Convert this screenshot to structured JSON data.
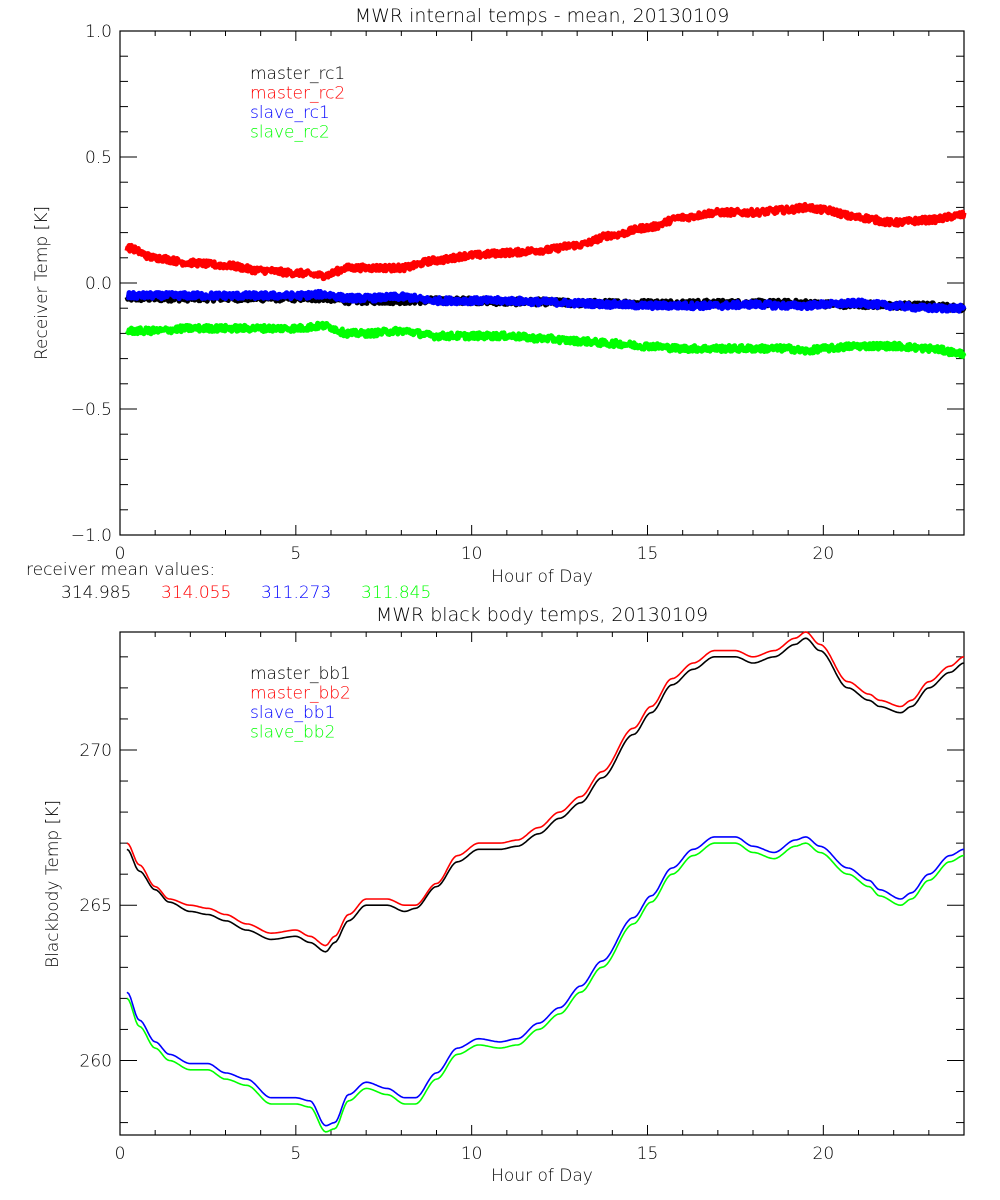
{
  "chart_data": [
    {
      "type": "line",
      "title": "MWR internal temps - mean, 20130109",
      "xlabel": "Hour of Day",
      "ylabel": "Receiver Temp [K]",
      "xlim": [
        0,
        24
      ],
      "ylim": [
        -1.0,
        1.0
      ],
      "x_major_ticks": [
        0,
        5,
        10,
        15,
        20
      ],
      "x_tick_labels": [
        "0",
        "5",
        "10",
        "15",
        "20"
      ],
      "y_major_ticks": [
        -1.0,
        -0.5,
        0.0,
        0.5,
        1.0
      ],
      "y_tick_labels": [
        "-1.0",
        "-0.5",
        "0.0",
        "0.5",
        "1.0"
      ],
      "grid": false,
      "legend_position": "top-left-inside",
      "x": [
        0.2,
        1,
        2,
        3,
        4,
        5,
        5.8,
        6.5,
        7,
        8,
        9,
        10,
        11,
        12,
        13,
        14,
        15,
        16,
        17,
        18,
        19,
        19.5,
        20,
        21,
        22,
        23,
        24
      ],
      "series": [
        {
          "name": "master_rc1",
          "color": "#000000",
          "noisy": true,
          "values": [
            -0.06,
            -0.06,
            -0.06,
            -0.06,
            -0.06,
            -0.06,
            -0.06,
            -0.07,
            -0.07,
            -0.07,
            -0.07,
            -0.07,
            -0.075,
            -0.075,
            -0.08,
            -0.08,
            -0.08,
            -0.08,
            -0.08,
            -0.08,
            -0.08,
            -0.08,
            -0.085,
            -0.085,
            -0.09,
            -0.09,
            -0.1
          ]
        },
        {
          "name": "master_rc2",
          "color": "#ff0000",
          "noisy": true,
          "values": [
            0.14,
            0.1,
            0.08,
            0.07,
            0.05,
            0.04,
            0.03,
            0.06,
            0.06,
            0.06,
            0.09,
            0.11,
            0.12,
            0.13,
            0.15,
            0.19,
            0.22,
            0.26,
            0.28,
            0.28,
            0.29,
            0.3,
            0.29,
            0.26,
            0.24,
            0.25,
            0.27
          ]
        },
        {
          "name": "slave_rc1",
          "color": "#0000ff",
          "noisy": true,
          "values": [
            -0.05,
            -0.05,
            -0.05,
            -0.05,
            -0.05,
            -0.05,
            -0.045,
            -0.06,
            -0.06,
            -0.055,
            -0.07,
            -0.07,
            -0.07,
            -0.075,
            -0.08,
            -0.085,
            -0.09,
            -0.09,
            -0.09,
            -0.085,
            -0.09,
            -0.09,
            -0.085,
            -0.08,
            -0.09,
            -0.1,
            -0.1
          ]
        },
        {
          "name": "slave_rc2",
          "color": "#00ff00",
          "noisy": true,
          "values": [
            -0.19,
            -0.19,
            -0.18,
            -0.18,
            -0.18,
            -0.18,
            -0.17,
            -0.2,
            -0.2,
            -0.19,
            -0.21,
            -0.21,
            -0.21,
            -0.22,
            -0.23,
            -0.24,
            -0.25,
            -0.26,
            -0.26,
            -0.26,
            -0.26,
            -0.27,
            -0.26,
            -0.25,
            -0.25,
            -0.26,
            -0.28
          ]
        }
      ],
      "annotations": {
        "label": "receiver mean values:",
        "values": [
          {
            "text": "314.985",
            "color": "#000000"
          },
          {
            "text": "314.055",
            "color": "#ff0000"
          },
          {
            "text": "311.273",
            "color": "#0000ff"
          },
          {
            "text": "311.845",
            "color": "#00ff00"
          }
        ]
      }
    },
    {
      "type": "line",
      "title": "MWR black body temps, 20130109",
      "xlabel": "Hour of Day",
      "ylabel": "Blackbody Temp [K]",
      "xlim": [
        0,
        24
      ],
      "ylim": [
        257.6,
        273.8
      ],
      "x_major_ticks": [
        0,
        5,
        10,
        15,
        20
      ],
      "x_tick_labels": [
        "0",
        "5",
        "10",
        "15",
        "20"
      ],
      "y_major_ticks": [
        260,
        265,
        270
      ],
      "y_tick_labels": [
        "260",
        "265",
        "270"
      ],
      "grid": false,
      "legend_position": "top-left-inside",
      "x": [
        0.2,
        0.55,
        1.0,
        1.4,
        2.0,
        2.5,
        3.0,
        3.6,
        4.3,
        5.0,
        5.4,
        5.85,
        6.1,
        6.5,
        7.0,
        7.6,
        8.1,
        8.4,
        9.0,
        9.6,
        10.2,
        10.8,
        11.3,
        11.9,
        12.5,
        13.1,
        13.7,
        14.6,
        15.1,
        15.7,
        16.3,
        16.9,
        17.5,
        18.0,
        18.6,
        19.2,
        19.5,
        19.9,
        20.7,
        21.3,
        21.6,
        22.2,
        22.5,
        23.0,
        23.6,
        24.0
      ],
      "series": [
        {
          "name": "master_bb1",
          "color": "#000000",
          "values": [
            266.8,
            266.1,
            265.5,
            265.1,
            264.8,
            264.7,
            264.5,
            264.2,
            263.9,
            264.0,
            263.8,
            263.5,
            263.8,
            264.5,
            265.0,
            265.0,
            264.8,
            264.9,
            265.6,
            266.4,
            266.8,
            266.8,
            266.9,
            267.3,
            267.8,
            268.3,
            269.1,
            270.5,
            271.2,
            272.1,
            272.6,
            273.0,
            273.0,
            272.8,
            273.0,
            273.4,
            273.6,
            273.2,
            272.0,
            271.6,
            271.4,
            271.2,
            271.4,
            272.0,
            272.5,
            272.8
          ]
        },
        {
          "name": "master_bb2",
          "color": "#ff0000",
          "values": [
            267.0,
            266.3,
            265.6,
            265.2,
            265.0,
            264.9,
            264.7,
            264.4,
            264.1,
            264.2,
            264.0,
            263.7,
            264.0,
            264.7,
            265.2,
            265.2,
            265.0,
            265.0,
            265.7,
            266.6,
            267.0,
            267.0,
            267.1,
            267.5,
            268.0,
            268.5,
            269.3,
            270.7,
            271.4,
            272.3,
            272.8,
            273.2,
            273.2,
            273.0,
            273.2,
            273.6,
            273.8,
            273.4,
            272.2,
            271.8,
            271.6,
            271.4,
            271.6,
            272.2,
            272.7,
            273.0
          ]
        },
        {
          "name": "slave_bb1",
          "color": "#0000ff",
          "values": [
            262.2,
            261.3,
            260.6,
            260.2,
            259.9,
            259.9,
            259.6,
            259.4,
            258.8,
            258.8,
            258.7,
            257.9,
            258.0,
            258.9,
            259.3,
            259.1,
            258.8,
            258.8,
            259.6,
            260.4,
            260.7,
            260.6,
            260.7,
            261.2,
            261.7,
            262.4,
            263.2,
            264.6,
            265.3,
            266.2,
            266.8,
            267.2,
            267.2,
            266.9,
            266.7,
            267.1,
            267.2,
            266.9,
            266.2,
            265.8,
            265.5,
            265.2,
            265.4,
            266.0,
            266.6,
            266.8
          ]
        },
        {
          "name": "slave_bb2",
          "color": "#00ff00",
          "values": [
            262.0,
            261.1,
            260.4,
            260.0,
            259.7,
            259.7,
            259.4,
            259.2,
            258.6,
            258.6,
            258.5,
            257.7,
            257.8,
            258.7,
            259.1,
            258.9,
            258.6,
            258.6,
            259.4,
            260.2,
            260.5,
            260.4,
            260.5,
            261.0,
            261.5,
            262.2,
            263.0,
            264.4,
            265.1,
            266.0,
            266.6,
            267.0,
            267.0,
            266.7,
            266.5,
            266.9,
            267.0,
            266.7,
            266.0,
            265.6,
            265.3,
            265.0,
            265.2,
            265.8,
            266.4,
            266.6
          ]
        }
      ]
    }
  ]
}
